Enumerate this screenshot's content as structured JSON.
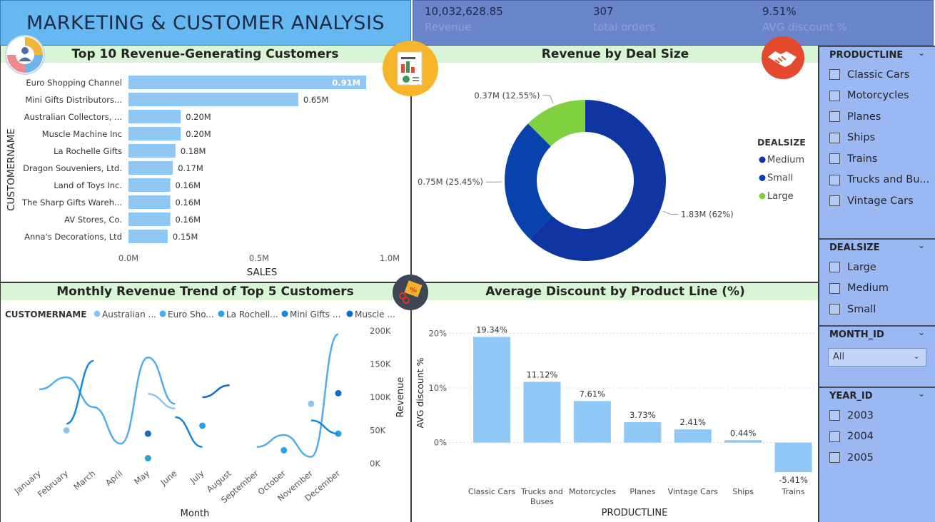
{
  "header": {
    "title": "MARKETING & CUSTOMER ANALYSIS",
    "kpis": [
      {
        "value": "10,032,628.85",
        "label": "Revenue"
      },
      {
        "value": "307",
        "label": "total orders"
      },
      {
        "value": "9.51%",
        "label": "AVG discount %"
      }
    ]
  },
  "colors": {
    "title_bg": "#66b8f3",
    "kpi_bg": "#6b85cc",
    "panel_title_bg": "#d8f6d5",
    "slicer_bg": "#9cb8f2",
    "bar": "#8fc8f5",
    "medium": "#0f35a3",
    "small": "#0842ad",
    "large": "#7fd140"
  },
  "icons": [
    "pie-chart-people-icon",
    "report-icon",
    "handshake-icon",
    "discount-tag-icon"
  ],
  "chart_data": [
    {
      "type": "bar",
      "orientation": "horizontal",
      "title": "Top 10 Revenue-Generating Customers",
      "xlabel": "SALES",
      "ylabel": "CUSTOMERNAME",
      "categories": [
        "Euro Shopping Channel",
        "Mini Gifts Distributors...",
        "Australian Collectors, ...",
        "Muscle Machine Inc",
        "La Rochelle Gifts",
        "Dragon Souveniers, Ltd.",
        "Land of Toys Inc.",
        "The Sharp Gifts Wareh...",
        "AV Stores, Co.",
        "Anna's Decorations, Ltd"
      ],
      "values": [
        0.91,
        0.65,
        0.2,
        0.2,
        0.18,
        0.17,
        0.16,
        0.16,
        0.16,
        0.15
      ],
      "data_labels": [
        "0.91M",
        "0.65M",
        "0.20M",
        "0.20M",
        "0.18M",
        "0.17M",
        "0.16M",
        "0.16M",
        "0.16M",
        "0.15M"
      ],
      "xlim": [
        0,
        1
      ],
      "xticks": [
        "0.0M",
        "0.5M",
        "1.0M"
      ]
    },
    {
      "type": "pie",
      "donut": true,
      "title": "Revenue by Deal Size",
      "legend_title": "DEALSIZE",
      "legend_position": "right",
      "slices": [
        {
          "name": "Medium",
          "value": 62,
          "label": "1.83M (62%)"
        },
        {
          "name": "Small",
          "value": 25.45,
          "label": "0.75M (25.45%)"
        },
        {
          "name": "Large",
          "value": 12.55,
          "label": "0.37M (12.55%)"
        }
      ]
    },
    {
      "type": "line",
      "title": "Monthly Revenue Trend of Top 5 Customers",
      "xlabel": "Month",
      "ylabel": "Revenue",
      "legend_title": "CUSTOMERNAME",
      "legend_position": "top",
      "x": [
        "January",
        "February",
        "March",
        "April",
        "May",
        "June",
        "July",
        "August",
        "September",
        "October",
        "November",
        "December"
      ],
      "ylim": [
        0,
        200000
      ],
      "yticks": [
        "0K",
        "50K",
        "100K",
        "150K",
        "200K"
      ],
      "series": [
        {
          "name": "Australian ...",
          "color": "#8cc4f2",
          "values": [
            null,
            50000,
            null,
            null,
            105000,
            83000,
            null,
            null,
            null,
            null,
            90000,
            null
          ]
        },
        {
          "name": "Euro Sho...",
          "color": "#4eaeea",
          "values": [
            112000,
            130000,
            85000,
            30000,
            160000,
            90000,
            null,
            null,
            25000,
            43000,
            10000,
            195000
          ]
        },
        {
          "name": "La Rochell...",
          "color": "#2d9de4",
          "values": [
            null,
            null,
            null,
            null,
            8000,
            null,
            57000,
            null,
            null,
            20000,
            null,
            45000
          ]
        },
        {
          "name": "Mini Gifts ...",
          "color": "#1588dc",
          "values": [
            null,
            60000,
            155000,
            null,
            null,
            70000,
            25000,
            null,
            null,
            null,
            65000,
            45000
          ]
        },
        {
          "name": "Muscle ...",
          "color": "#0f6dc7",
          "values": [
            null,
            null,
            null,
            null,
            45000,
            null,
            100000,
            118000,
            null,
            null,
            null,
            106000
          ]
        }
      ]
    },
    {
      "type": "bar",
      "title": "Average Discount by Product Line (%)",
      "xlabel": "PRODUCTLINE",
      "ylabel": "AVG discount %",
      "categories": [
        "Classic Cars",
        "Trucks and Buses",
        "Motorcycles",
        "Planes",
        "Vintage Cars",
        "Ships",
        "Trains"
      ],
      "values": [
        19.34,
        11.12,
        7.61,
        3.73,
        2.41,
        0.44,
        -5.41
      ],
      "data_labels": [
        "19.34%",
        "11.12%",
        "7.61%",
        "3.73%",
        "2.41%",
        "0.44%",
        "-5.41%"
      ],
      "ylim": [
        -8,
        22
      ],
      "yticks": [
        "0%",
        "10%",
        "20%"
      ]
    }
  ],
  "slicers": {
    "productline": {
      "title": "PRODUCTLINE",
      "items": [
        "Classic Cars",
        "Motorcycles",
        "Planes",
        "Ships",
        "Trains",
        "Trucks and Bu...",
        "Vintage Cars"
      ]
    },
    "dealsize": {
      "title": "DEALSIZE",
      "items": [
        "Large",
        "Medium",
        "Small"
      ]
    },
    "month": {
      "title": "MONTH_ID",
      "selected": "All"
    },
    "year": {
      "title": "YEAR_ID",
      "items": [
        "2003",
        "2004",
        "2005"
      ]
    }
  }
}
